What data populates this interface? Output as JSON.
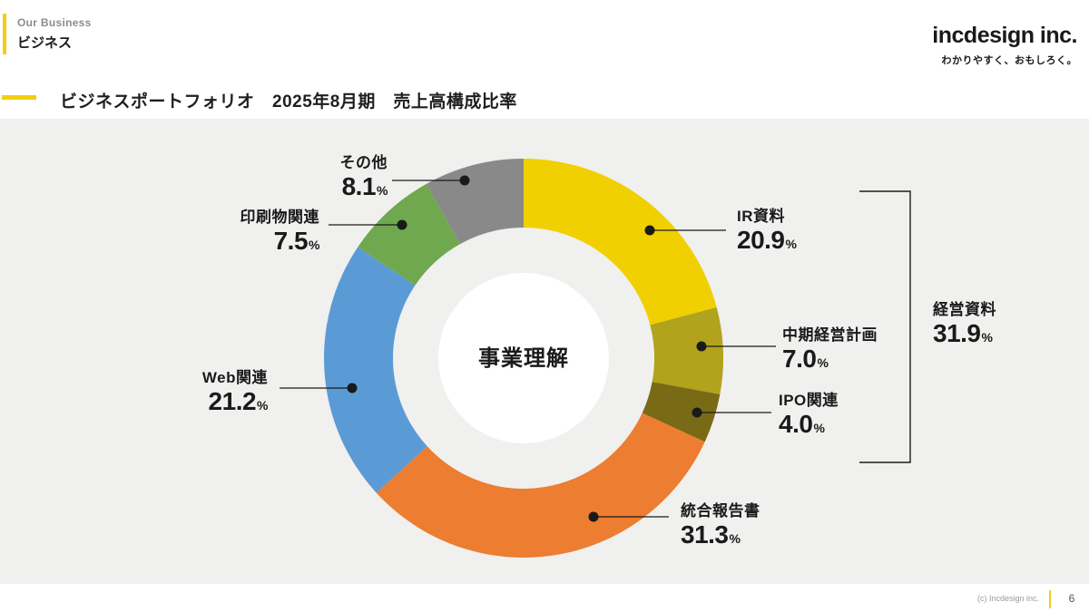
{
  "header": {
    "eyebrow": "Our Business",
    "section": "ビジネス",
    "logo_name": "incdesign inc.",
    "logo_tagline": "わかりやすく、おもしろく。"
  },
  "title": "ビジネスポートフォリオ　2025年8月期　売上高構成比率",
  "footer": {
    "copyright": "(c) Incdesign inc.",
    "page": "6"
  },
  "chart_data": {
    "type": "pie",
    "subtype": "donut",
    "title": "ビジネスポートフォリオ　2025年8月期　売上高構成比率",
    "center_label": "事業理解",
    "unit": "%",
    "start_angle_deg": 0,
    "direction": "clockwise",
    "background_color": "#F0F0EF",
    "segments": [
      {
        "label": "IR資料",
        "value": 20.9,
        "value_str": "20.9",
        "color": "#F0D000"
      },
      {
        "label": "中期経営計画",
        "value": 7.0,
        "value_str": "7.0",
        "color": "#B2A31D"
      },
      {
        "label": "IPO関連",
        "value": 4.0,
        "value_str": "4.0",
        "color": "#796B15"
      },
      {
        "label": "統合報告書",
        "value": 31.3,
        "value_str": "31.3",
        "color": "#ED7D31"
      },
      {
        "label": "Web関連",
        "value": 21.2,
        "value_str": "21.2",
        "color": "#5B9BD5"
      },
      {
        "label": "印刷物関連",
        "value": 7.5,
        "value_str": "7.5",
        "color": "#6FA84F"
      },
      {
        "label": "その他",
        "value": 8.1,
        "value_str": "8.1",
        "color": "#898989"
      }
    ],
    "group_annotation": {
      "label": "経営資料",
      "value": 31.9,
      "value_str": "31.9",
      "members": [
        "IR資料",
        "中期経営計画",
        "IPO関連"
      ]
    }
  }
}
